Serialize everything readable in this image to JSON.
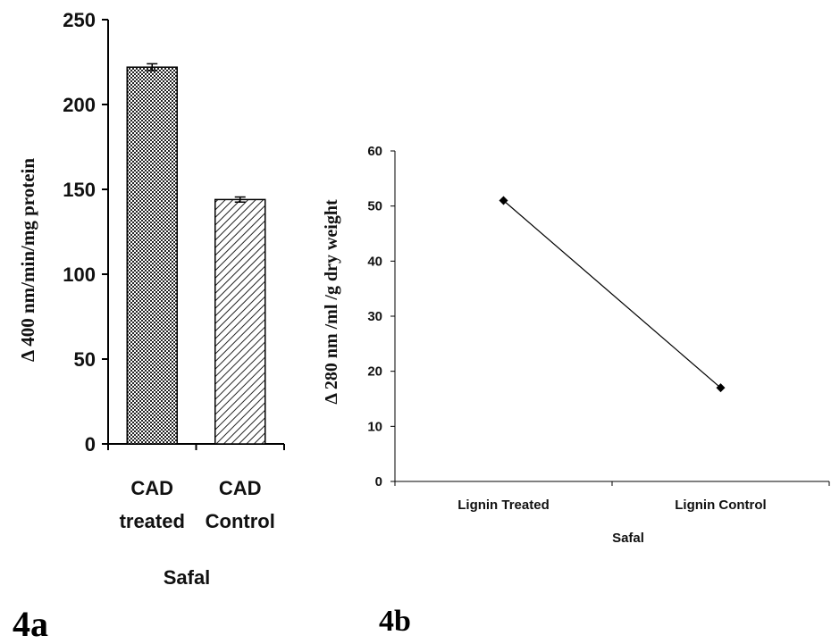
{
  "chart_data": [
    {
      "type": "bar",
      "panel": "4a",
      "categories": [
        [
          "CAD",
          "treated"
        ],
        [
          "CAD",
          "Control"
        ]
      ],
      "values": [
        222,
        144
      ],
      "errors": [
        2,
        1.5
      ],
      "xlabel": "Safal",
      "ylabel": "Δ 400 nm/min/mg protein",
      "ylim": [
        0,
        250
      ],
      "yticks": [
        "0",
        "50",
        "100",
        "150",
        "200",
        "250"
      ],
      "grid": false,
      "patterns": [
        "crosshatch",
        "diagonal"
      ]
    },
    {
      "type": "line",
      "panel": "4b",
      "categories": [
        "Lignin Treated",
        "Lignin Control"
      ],
      "values": [
        51,
        17
      ],
      "xlabel": "Safal",
      "ylabel": "Δ 280 nm /ml /g dry weight",
      "ylim": [
        0,
        60
      ],
      "yticks": [
        "0",
        "10",
        "20",
        "30",
        "40",
        "50",
        "60"
      ],
      "grid": false,
      "marker": "diamond"
    }
  ]
}
